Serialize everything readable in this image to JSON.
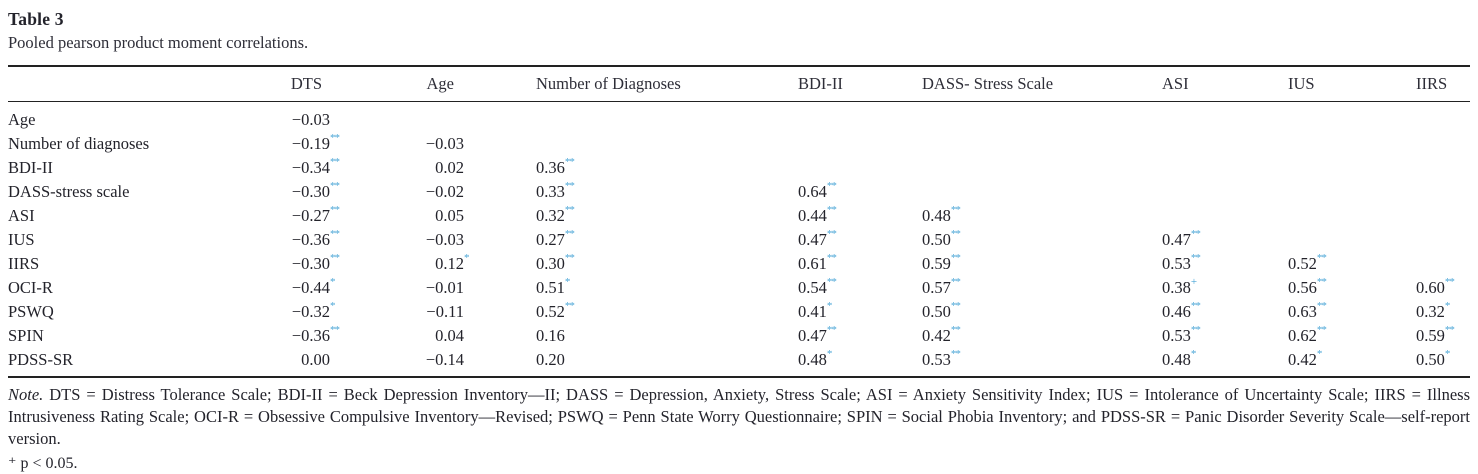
{
  "title": "Table 3",
  "subtitle": "Pooled pearson product moment correlations.",
  "table": {
    "columns": [
      "",
      "DTS",
      "Age",
      "Number of Diagnoses",
      "BDI-II",
      "DASS- Stress Scale",
      "ASI",
      "IUS",
      "IIRS"
    ],
    "rows": [
      {
        "label": "Age",
        "cells": [
          "−0.03",
          "",
          "",
          "",
          "",
          "",
          "",
          ""
        ]
      },
      {
        "label": "Number of diagnoses",
        "cells": [
          "−0.19^**",
          "−0.03",
          "",
          "",
          "",
          "",
          "",
          ""
        ]
      },
      {
        "label": "BDI-II",
        "cells": [
          "−0.34^**",
          "0.02",
          "0.36^**",
          "",
          "",
          "",
          "",
          ""
        ]
      },
      {
        "label": "DASS-stress scale",
        "cells": [
          "−0.30^**",
          "−0.02",
          "0.33^**",
          "0.64^**",
          "",
          "",
          "",
          ""
        ]
      },
      {
        "label": "ASI",
        "cells": [
          "−0.27^**",
          "0.05",
          "0.32^**",
          "0.44^**",
          "0.48^**",
          "",
          "",
          ""
        ]
      },
      {
        "label": "IUS",
        "cells": [
          "−0.36^**",
          "−0.03",
          "0.27^**",
          "0.47^**",
          "0.50^**",
          "0.47^**",
          "",
          ""
        ]
      },
      {
        "label": "IIRS",
        "cells": [
          "−0.30^**",
          "0.12^*",
          "0.30^**",
          "0.61^**",
          "0.59^**",
          "0.53^**",
          "0.52^**",
          ""
        ]
      },
      {
        "label": "OCI-R",
        "cells": [
          "−0.44^*",
          "−0.01",
          "0.51^*",
          "0.54^**",
          "0.57^**",
          "0.38^+",
          "0.56^**",
          "0.60^**"
        ]
      },
      {
        "label": "PSWQ",
        "cells": [
          "−0.32^*",
          "−0.11",
          "0.52^**",
          "0.41^*",
          "0.50^**",
          "0.46^**",
          "0.63^**",
          "0.32^*"
        ]
      },
      {
        "label": "SPIN",
        "cells": [
          "−0.36^**",
          "0.04",
          "0.16",
          "0.47^**",
          "0.42^**",
          "0.53^**",
          "0.62^**",
          "0.59^**"
        ]
      },
      {
        "label": "PDSS-SR",
        "cells": [
          "0.00",
          "−0.14",
          "0.20",
          "0.48^*",
          "0.53^**",
          "0.48^*",
          "0.42^*",
          "0.50^*"
        ]
      }
    ]
  },
  "note": {
    "label": "Note.",
    "text": " DTS = Distress Tolerance Scale; BDI-II = Beck Depression Inventory—II; DASS = Depression, Anxiety, Stress Scale; ASI = Anxiety Sensitivity Index; IUS = Intolerance of Uncertainty Scale; IIRS = Illness Intrusiveness Rating Scale; OCI-R = Obsessive Compulsive Inventory—Revised; PSWQ = Penn State Worry Questionnaire; SPIN = Social Phobia Inventory; and PDSS-SR = Panic Disorder Severity Scale—self-report version."
  },
  "footnote_clipped": "⁺ p < 0.05.",
  "colors": {
    "text": "#23232b",
    "rule": "#222222",
    "significance_marker": "#49a5d6"
  }
}
